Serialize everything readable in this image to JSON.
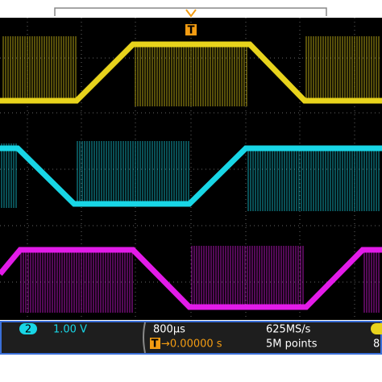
{
  "top_marker": "T",
  "status_bar": {
    "channel": "2",
    "volts_per_div": "1.00 V",
    "time_per_div": "800µs",
    "sample_rate": "625MS/s",
    "trigger_label": "T",
    "trigger_position": "→0.00000 s",
    "record_length": "5M points",
    "right_value": "8"
  }
}
